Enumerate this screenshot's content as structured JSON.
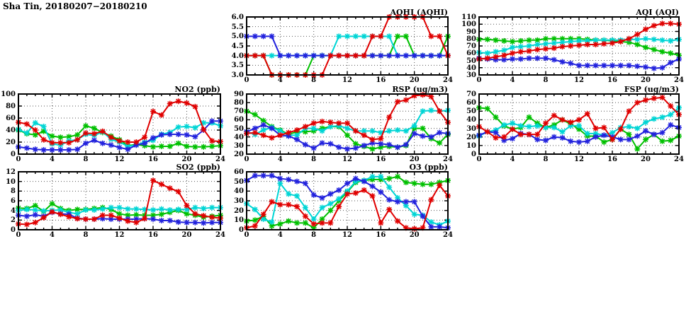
{
  "page": {
    "title": "Sha Tin, 20180207−20180210"
  },
  "colors": {
    "red": "#e00000",
    "green": "#00c000",
    "blue": "#2222dd",
    "cyan": "#00d5d5",
    "axis": "#000000"
  },
  "chart_data": [
    {
      "id": "aqhi",
      "type": "line",
      "title": "AQHI (AQHI)",
      "xlim": [
        0,
        24
      ],
      "xticks": [
        0,
        4,
        8,
        12,
        16,
        20,
        24
      ],
      "xtick_labels": [
        "0",
        "4",
        "8",
        "12",
        "16",
        "20",
        "24"
      ],
      "x_interval_hours": 1,
      "ylim": [
        3,
        6
      ],
      "yticks": [
        3,
        3.5,
        4,
        4.5,
        5,
        5.5,
        6
      ],
      "ytick_labels": [
        "3.0",
        "3.5",
        "4.0",
        "4.5",
        "5.0",
        "5.5",
        "6.0"
      ],
      "grid": true,
      "legend": "none",
      "series": [
        {
          "name": "green",
          "color": "#00c000",
          "values": [
            4,
            4,
            4,
            3,
            3,
            3,
            3,
            3,
            4,
            4,
            4,
            4,
            4,
            4,
            4,
            4,
            4,
            4,
            5,
            5,
            4,
            4,
            4,
            4,
            5
          ]
        },
        {
          "name": "cyan",
          "color": "#00d5d5",
          "values": [
            4,
            4,
            4,
            4,
            4,
            4,
            4,
            4,
            4,
            4,
            4,
            5,
            5,
            5,
            5,
            5,
            5,
            5,
            4,
            4,
            4,
            4,
            4,
            4,
            4
          ]
        },
        {
          "name": "blue",
          "color": "#2222dd",
          "values": [
            5,
            5,
            5,
            5,
            4,
            4,
            4,
            4,
            4,
            4,
            4,
            4,
            4,
            4,
            4,
            4,
            4,
            4,
            4,
            4,
            4,
            4,
            4,
            4,
            4
          ]
        },
        {
          "name": "red",
          "color": "#e00000",
          "values": [
            4,
            4,
            4,
            3,
            3,
            3,
            3,
            3,
            3,
            3,
            4,
            4,
            4,
            4,
            4,
            5,
            5,
            6,
            6,
            6,
            6,
            6,
            5,
            5,
            4
          ]
        }
      ]
    },
    {
      "id": "aqi",
      "type": "line",
      "title": "AQI (AQI)",
      "xlim": [
        0,
        24
      ],
      "xticks": [
        0,
        4,
        8,
        12,
        16,
        20,
        24
      ],
      "xtick_labels": [
        "0",
        "4",
        "8",
        "12",
        "16",
        "20",
        "24"
      ],
      "x_interval_hours": 1,
      "ylim": [
        30,
        110
      ],
      "yticks": [
        30,
        40,
        50,
        60,
        70,
        80,
        90,
        100,
        110
      ],
      "ytick_labels": [
        "30",
        "40",
        "50",
        "60",
        "70",
        "80",
        "90",
        "100",
        "110"
      ],
      "grid": true,
      "legend": "none",
      "series": [
        {
          "name": "green",
          "color": "#00c000",
          "values": [
            79,
            79,
            78,
            77,
            76,
            77,
            78,
            78,
            80,
            80,
            80,
            80,
            80,
            79,
            78,
            78,
            77,
            76,
            75,
            72,
            68,
            65,
            62,
            60,
            57
          ]
        },
        {
          "name": "cyan",
          "color": "#00d5d5",
          "values": [
            61,
            60,
            62,
            64,
            68,
            69,
            70,
            72,
            73,
            74,
            75,
            76,
            77,
            77,
            78,
            78,
            78,
            78,
            79,
            79,
            80,
            79,
            78,
            77,
            79
          ]
        },
        {
          "name": "blue",
          "color": "#2222dd",
          "values": [
            53,
            52,
            51,
            51,
            52,
            52,
            53,
            53,
            53,
            51,
            48,
            46,
            43,
            43,
            43,
            43,
            43,
            43,
            43,
            42,
            41,
            39,
            40,
            47,
            52
          ]
        },
        {
          "name": "red",
          "color": "#e00000",
          "values": [
            52,
            53,
            55,
            57,
            60,
            62,
            63,
            65,
            66,
            67,
            69,
            70,
            71,
            72,
            72,
            73,
            74,
            76,
            80,
            86,
            93,
            98,
            101,
            101,
            100
          ]
        }
      ]
    },
    {
      "id": "no2",
      "type": "line",
      "title": "NO2 (ppb)",
      "xlim": [
        0,
        24
      ],
      "xticks": [
        0,
        4,
        8,
        12,
        16,
        20,
        24
      ],
      "xtick_labels": [
        "0",
        "4",
        "8",
        "12",
        "16",
        "20",
        "24"
      ],
      "x_interval_hours": 1,
      "ylim": [
        0,
        100
      ],
      "yticks": [
        0,
        20,
        40,
        60,
        80,
        100
      ],
      "ytick_labels": [
        "0",
        "20",
        "40",
        "60",
        "80",
        "100"
      ],
      "grid": true,
      "legend": "none",
      "series": [
        {
          "name": "green",
          "color": "#00c000",
          "values": [
            40,
            34,
            32,
            38,
            30,
            28,
            29,
            32,
            47,
            43,
            36,
            30,
            24,
            14,
            16,
            14,
            12,
            13,
            13,
            18,
            13,
            12,
            12,
            13,
            14
          ]
        },
        {
          "name": "cyan",
          "color": "#00d5d5",
          "values": [
            41,
            35,
            52,
            46,
            17,
            15,
            22,
            24,
            33,
            31,
            37,
            25,
            20,
            13,
            15,
            20,
            23,
            33,
            36,
            45,
            46,
            44,
            52,
            52,
            47
          ]
        },
        {
          "name": "blue",
          "color": "#2222dd",
          "values": [
            12,
            10,
            8,
            7,
            7,
            7,
            7,
            8,
            18,
            23,
            18,
            15,
            11,
            8,
            15,
            18,
            27,
            32,
            33,
            33,
            32,
            29,
            40,
            55,
            55
          ]
        },
        {
          "name": "red",
          "color": "#e00000",
          "values": [
            53,
            50,
            40,
            24,
            19,
            19,
            19,
            24,
            35,
            34,
            38,
            28,
            22,
            20,
            20,
            28,
            71,
            65,
            84,
            88,
            85,
            79,
            41,
            22,
            21
          ]
        }
      ]
    },
    {
      "id": "rsp",
      "type": "line",
      "title": "RSP (ug/m3)",
      "xlim": [
        0,
        24
      ],
      "xticks": [
        0,
        4,
        8,
        12,
        16,
        20,
        24
      ],
      "xtick_labels": [
        "0",
        "4",
        "8",
        "12",
        "16",
        "20",
        "24"
      ],
      "x_interval_hours": 1,
      "ylim": [
        20,
        90
      ],
      "yticks": [
        20,
        30,
        40,
        50,
        60,
        70,
        80,
        90
      ],
      "ytick_labels": [
        "20",
        "30",
        "40",
        "50",
        "60",
        "70",
        "80",
        "90"
      ],
      "grid": true,
      "legend": "none",
      "series": [
        {
          "name": "green",
          "color": "#00c000",
          "values": [
            70,
            66,
            59,
            52,
            48,
            43,
            46,
            46,
            47,
            50,
            52,
            52,
            42,
            32,
            29,
            26,
            28,
            29,
            28,
            30,
            50,
            50,
            38,
            33,
            43
          ]
        },
        {
          "name": "cyan",
          "color": "#00d5d5",
          "values": [
            46,
            43,
            48,
            51,
            47,
            42,
            42,
            50,
            50,
            47,
            52,
            53,
            50,
            47,
            47,
            47,
            45,
            47,
            48,
            47,
            53,
            70,
            71,
            70,
            71
          ]
        },
        {
          "name": "blue",
          "color": "#2222dd",
          "values": [
            46,
            50,
            54,
            50,
            42,
            41,
            37,
            31,
            27,
            33,
            32,
            28,
            26,
            27,
            30,
            33,
            32,
            31,
            28,
            31,
            44,
            41,
            40,
            45,
            44
          ]
        },
        {
          "name": "red",
          "color": "#e00000",
          "values": [
            44,
            45,
            42,
            39,
            42,
            45,
            48,
            52,
            56,
            58,
            57,
            56,
            56,
            47,
            42,
            37,
            38,
            63,
            81,
            83,
            88,
            89,
            87,
            70,
            57
          ]
        }
      ]
    },
    {
      "id": "fsp",
      "type": "line",
      "title": "FSP (ug/m3)",
      "xlim": [
        0,
        24
      ],
      "xticks": [
        0,
        4,
        8,
        12,
        16,
        20,
        24
      ],
      "xtick_labels": [
        "0",
        "4",
        "8",
        "12",
        "16",
        "20",
        "24"
      ],
      "x_interval_hours": 1,
      "ylim": [
        0,
        70
      ],
      "yticks": [
        0,
        10,
        20,
        30,
        40,
        50,
        60,
        70
      ],
      "ytick_labels": [
        "0",
        "10",
        "20",
        "30",
        "40",
        "50",
        "60",
        "70"
      ],
      "grid": true,
      "legend": "none",
      "series": [
        {
          "name": "green",
          "color": "#00c000",
          "values": [
            54,
            53,
            43,
            33,
            29,
            31,
            43,
            36,
            31,
            34,
            40,
            35,
            29,
            21,
            21,
            14,
            17,
            29,
            23,
            6,
            17,
            23,
            15,
            16,
            21
          ]
        },
        {
          "name": "cyan",
          "color": "#00d5d5",
          "values": [
            21,
            26,
            28,
            34,
            36,
            33,
            32,
            33,
            31,
            31,
            26,
            33,
            33,
            24,
            24,
            22,
            25,
            31,
            32,
            30,
            37,
            41,
            43,
            46,
            54
          ]
        },
        {
          "name": "blue",
          "color": "#2222dd",
          "values": [
            22,
            26,
            25,
            16,
            18,
            24,
            23,
            17,
            16,
            20,
            19,
            15,
            14,
            15,
            20,
            22,
            20,
            17,
            17,
            21,
            27,
            23,
            25,
            34,
            31
          ]
        },
        {
          "name": "red",
          "color": "#e00000",
          "values": [
            32,
            26,
            19,
            20,
            29,
            23,
            23,
            23,
            36,
            45,
            40,
            37,
            40,
            47,
            30,
            31,
            17,
            29,
            50,
            60,
            63,
            65,
            66,
            56,
            46
          ]
        }
      ]
    },
    {
      "id": "so2",
      "type": "line",
      "title": "SO2 (ppb)",
      "xlim": [
        0,
        24
      ],
      "xticks": [
        0,
        4,
        8,
        12,
        16,
        20,
        24
      ],
      "xtick_labels": [
        "0",
        "4",
        "8",
        "12",
        "16",
        "20",
        "24"
      ],
      "x_interval_hours": 1,
      "ylim": [
        0,
        12
      ],
      "yticks": [
        0,
        2,
        4,
        6,
        8,
        10,
        12
      ],
      "ytick_labels": [
        "0",
        "2",
        "4",
        "6",
        "8",
        "10",
        "12"
      ],
      "grid": true,
      "legend": "none",
      "series": [
        {
          "name": "green",
          "color": "#00c000",
          "values": [
            4.5,
            4.4,
            5.0,
            3.8,
            5.4,
            4.4,
            4.0,
            4.2,
            4.2,
            4.4,
            4.6,
            4.2,
            3.3,
            3.0,
            3.1,
            3.0,
            3.0,
            3.2,
            3.6,
            4.0,
            3.3,
            3.0,
            2.6,
            2.8,
            3.0
          ]
        },
        {
          "name": "cyan",
          "color": "#00d5d5",
          "values": [
            4.0,
            4.2,
            4.1,
            3.9,
            4.0,
            4.1,
            3.6,
            3.3,
            4.1,
            4.1,
            4.3,
            4.6,
            4.6,
            4.3,
            4.3,
            4.2,
            4.1,
            4.3,
            4.1,
            4.2,
            4.2,
            4.6,
            4.4,
            4.6,
            4.6
          ]
        },
        {
          "name": "blue",
          "color": "#2222dd",
          "values": [
            3.0,
            2.8,
            3.1,
            2.8,
            3.6,
            3.3,
            3.2,
            2.4,
            2.2,
            2.2,
            2.3,
            2.2,
            2.2,
            2.2,
            2.2,
            2.3,
            2.2,
            1.9,
            1.9,
            1.6,
            1.5,
            1.5,
            1.4,
            1.5,
            1.5
          ]
        },
        {
          "name": "red",
          "color": "#e00000",
          "values": [
            1.2,
            1.1,
            1.5,
            2.5,
            3.7,
            3.2,
            2.7,
            2.3,
            2.2,
            2.2,
            3.0,
            3.0,
            2.4,
            1.8,
            1.5,
            2.3,
            10.2,
            9.4,
            8.6,
            7.9,
            5.0,
            3.3,
            2.9,
            2.6,
            2.4
          ]
        }
      ]
    },
    {
      "id": "o3",
      "type": "line",
      "title": "O3 (ppb)",
      "xlim": [
        0,
        24
      ],
      "xticks": [
        0,
        4,
        8,
        12,
        16,
        20,
        24
      ],
      "xtick_labels": [
        "0",
        "4",
        "8",
        "12",
        "16",
        "20",
        "24"
      ],
      "x_interval_hours": 1,
      "ylim": [
        0,
        60
      ],
      "yticks": [
        0,
        10,
        20,
        30,
        40,
        50,
        60
      ],
      "ytick_labels": [
        "0",
        "10",
        "20",
        "30",
        "40",
        "50",
        "60"
      ],
      "grid": true,
      "legend": "none",
      "series": [
        {
          "name": "green",
          "color": "#00c000",
          "values": [
            9,
            10,
            14,
            4,
            6,
            9,
            7,
            7,
            2,
            11,
            20,
            30,
            39,
            49,
            51,
            52,
            52,
            53,
            55,
            49,
            48,
            47,
            47,
            49,
            51
          ]
        },
        {
          "name": "cyan",
          "color": "#00d5d5",
          "values": [
            27,
            21,
            11,
            8,
            48,
            37,
            35,
            23,
            11,
            23,
            27,
            32,
            40,
            50,
            51,
            55,
            55,
            44,
            33,
            25,
            16,
            15,
            8,
            5,
            9
          ]
        },
        {
          "name": "blue",
          "color": "#2222dd",
          "values": [
            51,
            56,
            56,
            56,
            53,
            52,
            50,
            48,
            36,
            33,
            37,
            41,
            48,
            53,
            50,
            45,
            39,
            31,
            29,
            29,
            29,
            14,
            3,
            3,
            2
          ]
        },
        {
          "name": "red",
          "color": "#e00000",
          "values": [
            2,
            4,
            16,
            29,
            26,
            26,
            24,
            14,
            6,
            7,
            7,
            24,
            37,
            38,
            41,
            35,
            7,
            21,
            9,
            2,
            1,
            2,
            31,
            46,
            35
          ]
        }
      ]
    }
  ]
}
